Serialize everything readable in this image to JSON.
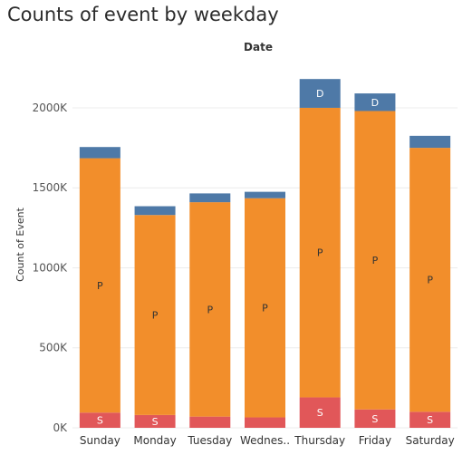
{
  "chart_data": {
    "type": "bar",
    "stacked": true,
    "title": "Counts of event by weekday",
    "column_header": "Date",
    "xlabel": "",
    "ylabel": "Count of Event",
    "ylim": [
      0,
      2300000
    ],
    "yticks": [
      0,
      500000,
      1000000,
      1500000,
      2000000
    ],
    "ytick_labels": [
      "0K",
      "500K",
      "1000K",
      "1500K",
      "2000K"
    ],
    "grid": true,
    "categories": [
      "Sunday",
      "Monday",
      "Tuesday",
      "Wednes..",
      "Thursday",
      "Friday",
      "Saturday"
    ],
    "series": [
      {
        "label": "S",
        "color": "#e15759",
        "values": [
          95000,
          80000,
          70000,
          65000,
          190000,
          115000,
          100000
        ],
        "label_shown": [
          true,
          true,
          false,
          false,
          true,
          true,
          true
        ],
        "label_color": "#ffffff"
      },
      {
        "label": "P",
        "color": "#f28e2b",
        "values": [
          1590000,
          1250000,
          1340000,
          1370000,
          1810000,
          1865000,
          1650000
        ],
        "label_shown": [
          true,
          true,
          true,
          true,
          true,
          true,
          true
        ],
        "label_color": "#333333"
      },
      {
        "label": "D",
        "color": "#4e79a7",
        "values": [
          70000,
          55000,
          55000,
          40000,
          180000,
          110000,
          75000
        ],
        "label_shown": [
          false,
          false,
          false,
          false,
          true,
          true,
          false
        ],
        "label_color": "#ffffff"
      }
    ]
  }
}
